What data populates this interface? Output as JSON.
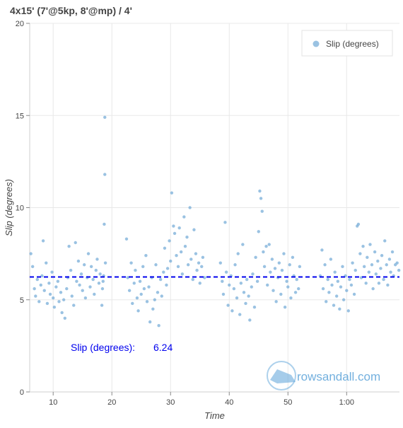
{
  "chart_data": {
    "type": "scatter",
    "title": "4x15' (7'@5kp, 8'@mp) / 4'",
    "xlabel": "Time",
    "ylabel": "Slip (degrees)",
    "xlim": [
      6,
      69
    ],
    "ylim": [
      0,
      20
    ],
    "xticks": [
      {
        "value": 10,
        "label": "10"
      },
      {
        "value": 20,
        "label": "20"
      },
      {
        "value": 30,
        "label": "30"
      },
      {
        "value": 40,
        "label": "40"
      },
      {
        "value": 50,
        "label": "50"
      },
      {
        "value": 60,
        "label": "1:00"
      }
    ],
    "yticks": [
      {
        "value": 0,
        "label": "0"
      },
      {
        "value": 5,
        "label": "5"
      },
      {
        "value": 10,
        "label": "10"
      },
      {
        "value": 15,
        "label": "15"
      },
      {
        "value": 20,
        "label": "20"
      }
    ],
    "grid": true,
    "legend": {
      "position": "top-right",
      "label": "Slip (degrees)"
    },
    "series": [
      {
        "name": "Slip (degrees)",
        "color": "#6fa8d6",
        "points": [
          [
            6.2,
            7.5
          ],
          [
            6.5,
            6.8
          ],
          [
            6.8,
            5.6
          ],
          [
            7.0,
            5.2
          ],
          [
            7.3,
            6.1
          ],
          [
            7.6,
            4.9
          ],
          [
            7.9,
            5.8
          ],
          [
            8.1,
            6.3
          ],
          [
            8.3,
            8.2
          ],
          [
            8.5,
            5.5
          ],
          [
            8.8,
            7.0
          ],
          [
            9.0,
            4.8
          ],
          [
            9.3,
            5.9
          ],
          [
            9.5,
            5.3
          ],
          [
            9.8,
            6.5
          ],
          [
            10.0,
            5.1
          ],
          [
            10.2,
            4.6
          ],
          [
            10.5,
            5.7
          ],
          [
            10.8,
            6.0
          ],
          [
            11.0,
            4.9
          ],
          [
            11.3,
            5.4
          ],
          [
            11.5,
            4.3
          ],
          [
            11.8,
            5.0
          ],
          [
            12.0,
            4.0
          ],
          [
            12.3,
            5.6
          ],
          [
            12.5,
            6.2
          ],
          [
            12.7,
            7.9
          ],
          [
            13.0,
            6.6
          ],
          [
            13.2,
            5.2
          ],
          [
            13.5,
            4.7
          ],
          [
            13.8,
            8.1
          ],
          [
            14.0,
            6.0
          ],
          [
            14.3,
            7.1
          ],
          [
            14.5,
            5.8
          ],
          [
            14.8,
            6.4
          ],
          [
            15.0,
            5.5
          ],
          [
            15.3,
            6.9
          ],
          [
            15.5,
            5.1
          ],
          [
            15.8,
            6.2
          ],
          [
            16.0,
            7.5
          ],
          [
            16.3,
            5.7
          ],
          [
            16.5,
            6.8
          ],
          [
            16.8,
            6.1
          ],
          [
            17.0,
            5.3
          ],
          [
            17.3,
            6.6
          ],
          [
            17.5,
            7.2
          ],
          [
            17.8,
            5.9
          ],
          [
            18.0,
            6.4
          ],
          [
            18.3,
            4.7
          ],
          [
            18.5,
            6.0
          ],
          [
            18.8,
            14.9
          ],
          [
            18.8,
            11.8
          ],
          [
            18.7,
            9.1
          ],
          [
            18.9,
            7.0
          ],
          [
            18.6,
            6.3
          ],
          [
            18.4,
            5.6
          ],
          [
            22.5,
            8.3
          ],
          [
            22.7,
            6.2
          ],
          [
            23.0,
            5.5
          ],
          [
            23.3,
            7.0
          ],
          [
            23.5,
            4.8
          ],
          [
            23.8,
            5.9
          ],
          [
            24.0,
            6.6
          ],
          [
            24.3,
            5.1
          ],
          [
            24.5,
            4.4
          ],
          [
            24.8,
            6.0
          ],
          [
            25.0,
            5.3
          ],
          [
            25.3,
            6.8
          ],
          [
            25.5,
            5.6
          ],
          [
            25.8,
            7.4
          ],
          [
            26.0,
            4.9
          ],
          [
            26.3,
            5.7
          ],
          [
            26.5,
            3.8
          ],
          [
            26.8,
            6.2
          ],
          [
            27.0,
            4.5
          ],
          [
            27.3,
            5.0
          ],
          [
            27.5,
            6.9
          ],
          [
            27.8,
            5.4
          ],
          [
            28.0,
            3.6
          ],
          [
            28.3,
            6.1
          ],
          [
            28.5,
            5.2
          ],
          [
            28.8,
            6.5
          ],
          [
            29.0,
            7.8
          ],
          [
            29.3,
            5.8
          ],
          [
            29.5,
            6.7
          ],
          [
            29.8,
            8.2
          ],
          [
            30.0,
            7.1
          ],
          [
            30.2,
            10.8
          ],
          [
            30.5,
            9.0
          ],
          [
            30.7,
            8.6
          ],
          [
            31.0,
            7.4
          ],
          [
            31.3,
            6.8
          ],
          [
            31.5,
            8.9
          ],
          [
            31.8,
            7.6
          ],
          [
            32.0,
            6.4
          ],
          [
            32.3,
            9.5
          ],
          [
            32.5,
            7.9
          ],
          [
            32.8,
            8.4
          ],
          [
            33.0,
            6.9
          ],
          [
            33.3,
            10.0
          ],
          [
            33.5,
            7.2
          ],
          [
            33.8,
            6.1
          ],
          [
            34.0,
            8.8
          ],
          [
            34.3,
            7.5
          ],
          [
            34.5,
            6.6
          ],
          [
            34.8,
            7.0
          ],
          [
            35.0,
            5.9
          ],
          [
            35.3,
            6.8
          ],
          [
            35.5,
            7.3
          ],
          [
            35.8,
            6.2
          ],
          [
            38.5,
            7.0
          ],
          [
            38.8,
            6.0
          ],
          [
            39.0,
            5.3
          ],
          [
            39.3,
            9.2
          ],
          [
            39.5,
            6.5
          ],
          [
            39.8,
            4.7
          ],
          [
            40.0,
            5.8
          ],
          [
            40.3,
            6.3
          ],
          [
            40.5,
            4.4
          ],
          [
            40.8,
            5.6
          ],
          [
            41.0,
            6.9
          ],
          [
            41.3,
            5.1
          ],
          [
            41.5,
            7.5
          ],
          [
            41.8,
            4.2
          ],
          [
            42.0,
            5.9
          ],
          [
            42.3,
            8.0
          ],
          [
            42.5,
            5.4
          ],
          [
            42.8,
            4.8
          ],
          [
            43.0,
            6.1
          ],
          [
            43.3,
            5.2
          ],
          [
            43.5,
            3.9
          ],
          [
            43.8,
            5.7
          ],
          [
            44.0,
            6.4
          ],
          [
            44.3,
            4.6
          ],
          [
            44.5,
            7.3
          ],
          [
            44.8,
            6.0
          ],
          [
            45.0,
            8.7
          ],
          [
            45.2,
            10.9
          ],
          [
            45.4,
            10.5
          ],
          [
            45.6,
            9.8
          ],
          [
            45.8,
            7.6
          ],
          [
            46.0,
            6.8
          ],
          [
            46.3,
            7.9
          ],
          [
            46.5,
            5.8
          ],
          [
            46.8,
            8.0
          ],
          [
            47.0,
            6.5
          ],
          [
            47.3,
            7.2
          ],
          [
            47.5,
            5.5
          ],
          [
            47.8,
            6.7
          ],
          [
            48.0,
            4.9
          ],
          [
            48.3,
            6.2
          ],
          [
            48.5,
            7.0
          ],
          [
            48.8,
            5.3
          ],
          [
            49.0,
            6.6
          ],
          [
            49.3,
            7.5
          ],
          [
            49.5,
            4.6
          ],
          [
            49.8,
            6.0
          ],
          [
            50.0,
            5.7
          ],
          [
            50.3,
            6.9
          ],
          [
            50.5,
            5.1
          ],
          [
            50.8,
            7.3
          ],
          [
            51.0,
            6.3
          ],
          [
            51.3,
            5.4
          ],
          [
            51.5,
            6.1
          ],
          [
            51.8,
            5.6
          ],
          [
            52.0,
            6.8
          ],
          [
            55.5,
            6.3
          ],
          [
            55.8,
            7.7
          ],
          [
            56.0,
            5.6
          ],
          [
            56.3,
            6.9
          ],
          [
            56.5,
            4.9
          ],
          [
            56.8,
            6.1
          ],
          [
            57.0,
            5.4
          ],
          [
            57.3,
            7.2
          ],
          [
            57.5,
            5.8
          ],
          [
            57.8,
            4.7
          ],
          [
            58.0,
            6.5
          ],
          [
            58.3,
            5.2
          ],
          [
            58.5,
            6.0
          ],
          [
            58.8,
            4.5
          ],
          [
            59.0,
            5.7
          ],
          [
            59.3,
            6.8
          ],
          [
            59.5,
            5.0
          ],
          [
            59.8,
            6.3
          ],
          [
            60.0,
            5.5
          ],
          [
            60.3,
            4.4
          ],
          [
            60.5,
            6.1
          ],
          [
            60.8,
            5.8
          ],
          [
            61.0,
            7.0
          ],
          [
            61.3,
            5.3
          ],
          [
            61.5,
            6.6
          ],
          [
            61.8,
            9.0
          ],
          [
            62.0,
            9.1
          ],
          [
            62.3,
            7.5
          ],
          [
            62.5,
            6.2
          ],
          [
            62.8,
            7.9
          ],
          [
            63.0,
            6.8
          ],
          [
            63.3,
            5.9
          ],
          [
            63.5,
            7.3
          ],
          [
            63.8,
            6.5
          ],
          [
            64.0,
            8.0
          ],
          [
            64.3,
            6.9
          ],
          [
            64.5,
            5.6
          ],
          [
            64.8,
            7.6
          ],
          [
            65.0,
            6.4
          ],
          [
            65.3,
            7.1
          ],
          [
            65.5,
            5.9
          ],
          [
            65.8,
            6.7
          ],
          [
            66.0,
            7.4
          ],
          [
            66.3,
            6.1
          ],
          [
            66.5,
            8.2
          ],
          [
            66.8,
            6.9
          ],
          [
            67.0,
            5.8
          ],
          [
            67.3,
            7.2
          ],
          [
            67.5,
            6.5
          ],
          [
            67.8,
            7.6
          ],
          [
            68.0,
            6.3
          ],
          [
            68.3,
            6.9
          ],
          [
            68.6,
            7.0
          ],
          [
            68.9,
            6.6
          ]
        ]
      }
    ],
    "reference_line": {
      "y": 6.24,
      "color": "#0000ee",
      "style": "dashed"
    },
    "annotations": [
      {
        "label": "Slip (degrees):",
        "value": "6.24",
        "color": "#0000ee"
      }
    ]
  },
  "watermark": {
    "text": "rowsandall.com",
    "color": "#5ba3d9"
  }
}
